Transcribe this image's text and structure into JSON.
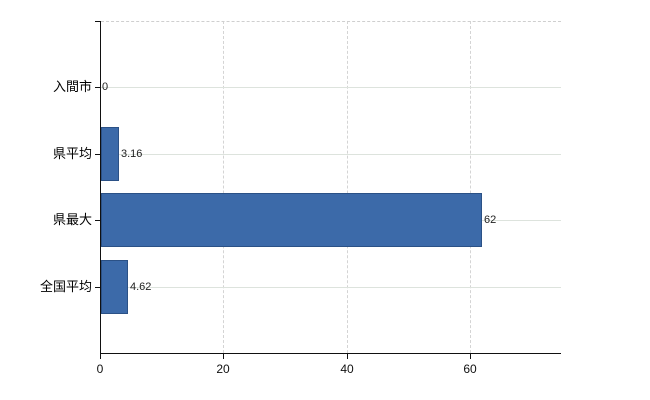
{
  "chart_data": {
    "type": "bar",
    "orientation": "horizontal",
    "title": "",
    "categories": [
      "入間市",
      "県平均",
      "県最大",
      "全国平均"
    ],
    "values": [
      0,
      3.16,
      62,
      4.62
    ],
    "value_labels": [
      "0",
      "3.16",
      "62",
      "4.62"
    ],
    "x_ticks": [
      0,
      20,
      40,
      60
    ],
    "x_tick_labels": [
      "0",
      "20",
      "40",
      "60"
    ],
    "xlim": [
      0,
      74.6
    ],
    "grid": true,
    "legend": "none",
    "bar_color": "#3c6aa9",
    "bar_border_color": "#2b5186",
    "value_label_color": "#222222",
    "category_label_color": "#000000",
    "axis_color": "#111111",
    "h_gridline_color": "#dde3dd",
    "v_gridline_color": "#d4d4d4",
    "top_border_color": "#cfcfcf",
    "background": "#ffffff"
  }
}
